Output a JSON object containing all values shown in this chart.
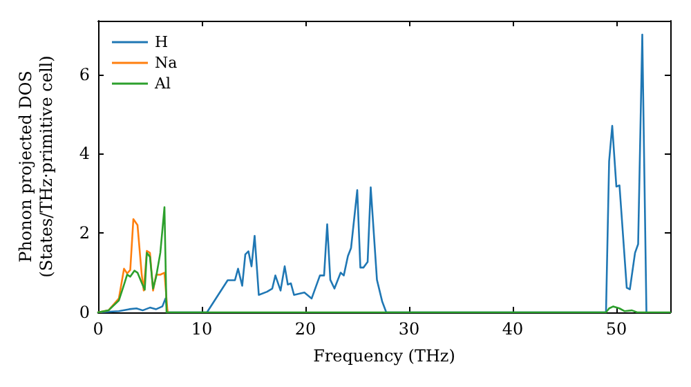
{
  "chart_data": {
    "type": "line",
    "xlabel": "Frequency (THz)",
    "ylabel": "Phonon projected DOS\n(States/THz·primitive cell)",
    "xlim": [
      0,
      55.2
    ],
    "ylim": [
      0,
      7.35
    ],
    "xticks": [
      0,
      10,
      20,
      30,
      40,
      50
    ],
    "yticks": [
      0,
      2,
      4,
      6
    ],
    "grid": false,
    "legend": "top left",
    "marker": "none",
    "line_style": "solid",
    "series": [
      {
        "name": "H",
        "color": "#1f77b4",
        "x": [
          0,
          2,
          3,
          3.7,
          4.3,
          5,
          5.6,
          6.2,
          6.5,
          6.7,
          10,
          10.5,
          12.5,
          13.2,
          13.5,
          13.9,
          14.2,
          14.5,
          14.8,
          15.1,
          15.5,
          16.3,
          16.8,
          17.1,
          17.6,
          18,
          18.3,
          18.6,
          18.9,
          19.9,
          20.6,
          21.4,
          21.8,
          22.1,
          22.4,
          22.8,
          23.4,
          23.7,
          24.1,
          24.4,
          25,
          25.3,
          25.6,
          26,
          26.3,
          26.9,
          27.4,
          27.8,
          49,
          49.3,
          49.6,
          50,
          50.3,
          51,
          51.3,
          51.8,
          52.1,
          52.5,
          52.9
        ],
        "values": [
          0,
          0.03,
          0.08,
          0.1,
          0.05,
          0.12,
          0.08,
          0.15,
          0.35,
          0,
          0,
          0,
          0.81,
          0.81,
          1.1,
          0.67,
          1.46,
          1.54,
          1.16,
          1.93,
          0.44,
          0.52,
          0.6,
          0.93,
          0.55,
          1.16,
          0.7,
          0.73,
          0.44,
          0.5,
          0.35,
          0.93,
          0.93,
          2.22,
          0.82,
          0.6,
          1,
          0.93,
          1.42,
          1.62,
          3.08,
          1.13,
          1.13,
          1.27,
          3.15,
          0.82,
          0.28,
          0,
          0,
          3.81,
          4.7,
          3.17,
          3.2,
          0.62,
          0.58,
          1.5,
          1.72,
          7,
          0
        ]
      },
      {
        "name": "Na",
        "color": "#ff7f0e",
        "x": [
          0,
          1,
          2,
          2.5,
          2.8,
          3.1,
          3.4,
          3.8,
          4.2,
          4.4,
          4.7,
          5,
          5.3,
          5.6,
          6,
          6.4,
          6.7
        ],
        "values": [
          0,
          0.05,
          0.35,
          1.1,
          0.98,
          1.07,
          2.35,
          2.2,
          0.97,
          0.55,
          1.55,
          1.5,
          0.55,
          0.95,
          0.95,
          1,
          0
        ]
      },
      {
        "name": "Al",
        "color": "#2ca02c",
        "x": [
          0,
          1,
          2,
          2.5,
          2.8,
          3.1,
          3.5,
          3.8,
          4.2,
          4.5,
          4.7,
          5,
          5.3,
          5.6,
          6,
          6.4,
          6.6,
          49,
          49.3,
          49.7,
          50.3,
          50.8,
          51.5,
          52,
          55.2
        ],
        "values": [
          0,
          0.05,
          0.3,
          0.7,
          0.95,
          0.9,
          1.05,
          1,
          0.75,
          0.57,
          1.5,
          1.4,
          0.6,
          0.9,
          1.5,
          2.65,
          0,
          0,
          0.1,
          0.15,
          0.1,
          0.03,
          0.05,
          0,
          0
        ]
      }
    ]
  }
}
